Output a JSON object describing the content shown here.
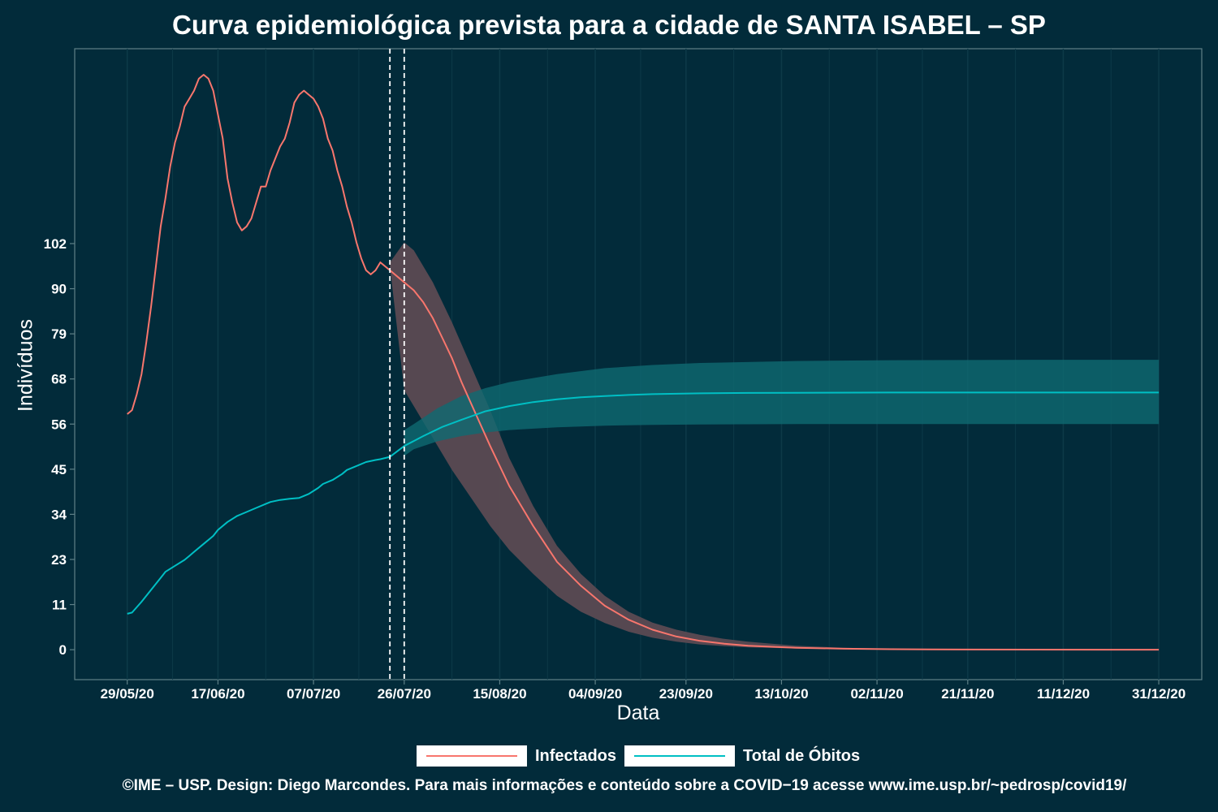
{
  "title": "Curva epidemiológica prevista para a cidade de SANTA ISABEL – SP",
  "footer": "©IME – USP. Design: Diego Marcondes. Para mais informações e conteúdo sobre a COVID−19 acesse www.ime.usp.br/~pedrosp/covid19/",
  "colors": {
    "background": "#022b3a",
    "infectados": "#f8766d",
    "obitos": "#00bfc4",
    "infectados_band": "#5b4a52",
    "obitos_band": "#0f6a72",
    "grid": "#0d3a48",
    "text": "#ffffff"
  },
  "chart_data": {
    "type": "line",
    "title": "Curva epidemiológica prevista para a cidade de SANTA ISABEL – SP",
    "xlabel": "Data",
    "ylabel": "Indivíduos",
    "x_tick_labels": [
      "29/05/20",
      "17/06/20",
      "07/07/20",
      "26/07/20",
      "15/08/20",
      "04/09/20",
      "23/09/20",
      "13/10/20",
      "02/11/20",
      "21/11/20",
      "11/12/20",
      "31/12/20"
    ],
    "x_tick_days": [
      0,
      19,
      39,
      58,
      78,
      98,
      117,
      137,
      157,
      176,
      196,
      216
    ],
    "y_tick_labels": [
      "0",
      "11",
      "23",
      "34",
      "45",
      "56",
      "68",
      "79",
      "90",
      "102"
    ],
    "y_tick_values": [
      0,
      11.3,
      22.6,
      33.9,
      45.2,
      56.5,
      67.8,
      79.1,
      90.4,
      101.7
    ],
    "xlim_days": [
      -11,
      225
    ],
    "ylim": [
      -7.5,
      150.5
    ],
    "grid": true,
    "legend_position": "bottom",
    "forecast_markers_days": [
      55,
      58
    ],
    "series": [
      {
        "name": "Infectados",
        "color": "#f8766d",
        "x_days": [
          0,
          1,
          2,
          3,
          4,
          5,
          6,
          7,
          8,
          9,
          10,
          11,
          12,
          13,
          14,
          15,
          16,
          17,
          18,
          19,
          20,
          21,
          22,
          23,
          24,
          25,
          26,
          27,
          28,
          29,
          30,
          31,
          32,
          33,
          34,
          35,
          36,
          37,
          38,
          39,
          40,
          41,
          42,
          43,
          44,
          45,
          46,
          47,
          48,
          49,
          50,
          51,
          52,
          53,
          54,
          55,
          58,
          60,
          62,
          64,
          66,
          68,
          70,
          73,
          76,
          80,
          85,
          90,
          95,
          100,
          105,
          110,
          115,
          120,
          125,
          130,
          140,
          150,
          160,
          175,
          190,
          205,
          216
        ],
        "values": [
          59,
          60,
          64,
          69,
          77,
          86,
          96,
          106,
          113,
          121,
          127,
          131,
          136,
          138,
          140,
          143,
          144,
          143,
          140,
          134,
          128,
          118,
          112,
          107,
          105,
          106,
          108,
          112,
          116,
          116,
          120,
          123,
          126,
          128,
          132,
          137,
          139,
          140,
          139,
          138,
          136,
          133,
          128,
          125,
          120,
          116,
          111,
          107,
          102,
          98,
          95,
          94,
          95,
          97,
          96,
          95,
          92,
          90,
          87,
          83,
          78,
          73,
          67,
          59,
          51,
          41,
          31,
          22,
          16,
          11,
          7.5,
          5,
          3.3,
          2.2,
          1.5,
          1.0,
          0.5,
          0.25,
          0.12,
          0.05,
          0.02,
          0.01,
          0
        ]
      },
      {
        "name": "Total de Óbitos",
        "color": "#00bfc4",
        "x_days": [
          0,
          1,
          3,
          5,
          7,
          8,
          10,
          12,
          13,
          14,
          16,
          18,
          19,
          21,
          23,
          25,
          27,
          29,
          30,
          32,
          34,
          36,
          38,
          40,
          41,
          43,
          45,
          46,
          48,
          50,
          52,
          53,
          55,
          58,
          62,
          66,
          70,
          75,
          80,
          85,
          90,
          95,
          100,
          105,
          110,
          120,
          130,
          140,
          160,
          180,
          200,
          216
        ],
        "values": [
          9,
          9.3,
          12,
          15,
          18,
          19.5,
          21,
          22.5,
          23.5,
          24.5,
          26.5,
          28.5,
          30,
          32,
          33.5,
          34.5,
          35.5,
          36.5,
          37,
          37.5,
          37.8,
          38,
          39,
          40.5,
          41.5,
          42.5,
          44,
          45,
          46,
          47,
          47.5,
          47.7,
          48.3,
          51,
          53.5,
          55.8,
          57.6,
          59.7,
          61,
          62,
          62.7,
          63.2,
          63.5,
          63.8,
          64,
          64.2,
          64.3,
          64.35,
          64.4,
          64.4,
          64.4,
          64.4
        ]
      }
    ],
    "bands": [
      {
        "series": "Infectados",
        "x_days": [
          55,
          58,
          60,
          64,
          68,
          72,
          76,
          80,
          85,
          90,
          95,
          100,
          105,
          110,
          115,
          120,
          125,
          130,
          140,
          150,
          160,
          175,
          190,
          205,
          216
        ],
        "lower": [
          96,
          65,
          61,
          53,
          45,
          38,
          31,
          25,
          19,
          13.5,
          9.5,
          6.7,
          4.5,
          3.0,
          2.0,
          1.3,
          0.9,
          0.6,
          0.3,
          0.15,
          0.07,
          0.03,
          0.01,
          0,
          0
        ],
        "upper": [
          97,
          102,
          100,
          92,
          82,
          71,
          60,
          48,
          36,
          26,
          19,
          13.5,
          9.5,
          6.8,
          5.0,
          3.7,
          2.7,
          2.0,
          1.0,
          0.5,
          0.25,
          0.1,
          0.05,
          0.02,
          0.01
        ]
      },
      {
        "series": "Total de Óbitos",
        "x_days": [
          58,
          60,
          65,
          70,
          75,
          80,
          90,
          100,
          110,
          120,
          140,
          160,
          190,
          216
        ],
        "lower": [
          48.5,
          50.2,
          52.2,
          53.5,
          54.4,
          55.0,
          55.7,
          56.1,
          56.3,
          56.4,
          56.5,
          56.5,
          56.5,
          56.5
        ],
        "upper": [
          55,
          56.5,
          60.5,
          63.5,
          65.5,
          67.0,
          69.0,
          70.5,
          71.3,
          71.8,
          72.3,
          72.5,
          72.6,
          72.6
        ]
      }
    ]
  }
}
